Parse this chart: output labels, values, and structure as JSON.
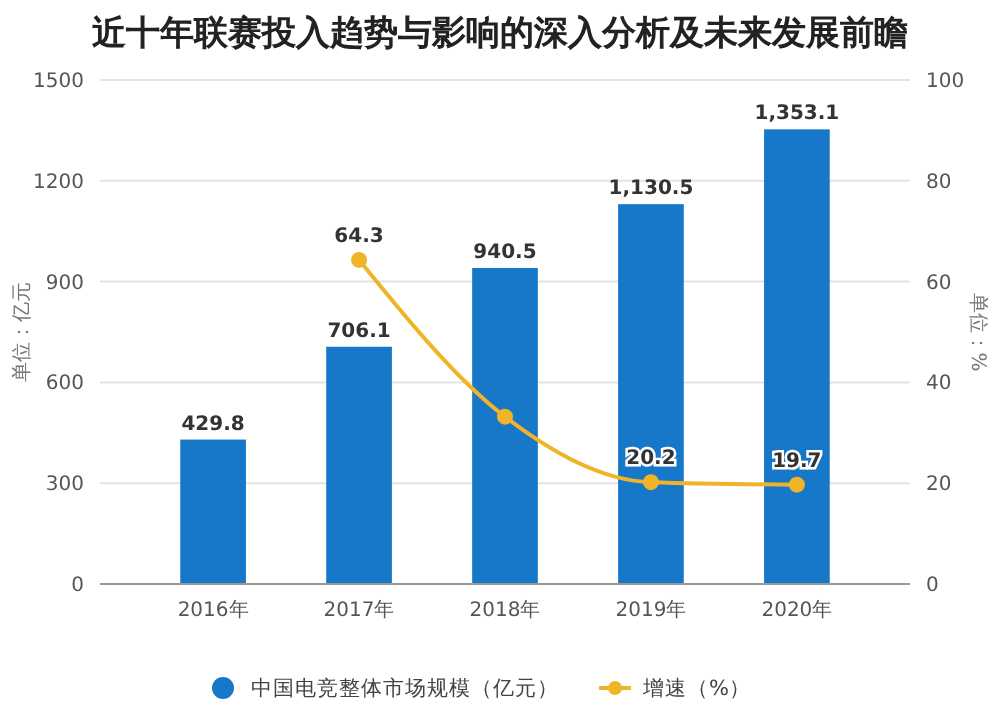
{
  "chart_data": {
    "type": "bar",
    "title": "近十年联赛投入趋势与影响的深入分析及未来发展前瞻",
    "ylabel": "单位：亿元",
    "y2label": "单位：%",
    "categories": [
      "2016年",
      "2017年",
      "2018年",
      "2019年",
      "2020年"
    ],
    "series": [
      {
        "name": "中国电竞整体市场规模（亿元）",
        "color": "#1777c8",
        "values": [
          429.8,
          706.1,
          940.5,
          1130.5,
          1353.1
        ],
        "value_labels": [
          "429.8",
          "706.1",
          "940.5",
          "1,130.5",
          "1,353.1"
        ]
      },
      {
        "name": "增速（%）",
        "type": "line",
        "axis": "y2",
        "color": "#f0b429",
        "marker": "circle",
        "values": [
          null,
          64.3,
          33.2,
          20.2,
          19.7
        ],
        "value_labels": [
          null,
          "64.3",
          null,
          "20.2",
          "19.7"
        ]
      }
    ],
    "ylim": [
      0,
      1500
    ],
    "yticks": [
      0,
      300,
      600,
      900,
      1200,
      1500
    ],
    "y2lim": [
      0,
      100
    ],
    "y2ticks": [
      0,
      20,
      40,
      60,
      80,
      100
    ],
    "grid": "y",
    "legend": "bottom"
  }
}
